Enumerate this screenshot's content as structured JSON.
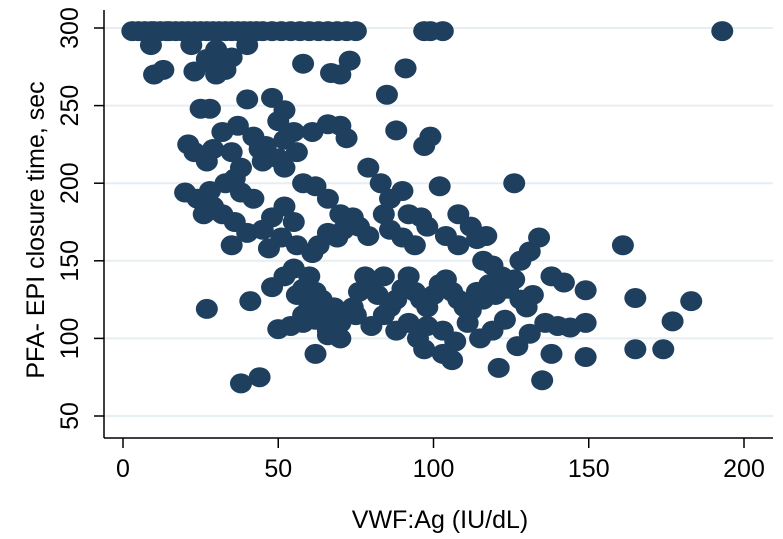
{
  "chart_data": {
    "type": "scatter",
    "title": "",
    "xlabel": "VWF:Ag (IU/dL)",
    "ylabel": "PFA- EPI closure time, sec",
    "xlim": [
      0,
      205
    ],
    "ylim": [
      42,
      307
    ],
    "xticks": [
      0,
      50,
      100,
      150,
      200
    ],
    "yticks": [
      50,
      100,
      150,
      200,
      250,
      300
    ],
    "grid": "horizontal",
    "legend": "none",
    "colors": {
      "marker": "#1f3f5f",
      "grid": "#e6eef2",
      "axis": "#000000"
    },
    "points": [
      [
        3,
        298
      ],
      [
        5,
        298
      ],
      [
        7,
        298
      ],
      [
        9,
        298
      ],
      [
        10,
        298
      ],
      [
        12,
        298
      ],
      [
        14,
        298
      ],
      [
        15,
        298
      ],
      [
        17,
        298
      ],
      [
        19,
        298
      ],
      [
        21,
        298
      ],
      [
        23,
        298
      ],
      [
        25,
        298
      ],
      [
        27,
        298
      ],
      [
        29,
        298
      ],
      [
        31,
        298
      ],
      [
        33,
        298
      ],
      [
        35,
        298
      ],
      [
        37,
        298
      ],
      [
        39,
        298
      ],
      [
        41,
        298
      ],
      [
        43,
        298
      ],
      [
        45,
        298
      ],
      [
        48,
        298
      ],
      [
        51,
        298
      ],
      [
        54,
        298
      ],
      [
        57,
        298
      ],
      [
        60,
        298
      ],
      [
        63,
        298
      ],
      [
        66,
        298
      ],
      [
        69,
        298
      ],
      [
        72,
        298
      ],
      [
        75,
        298
      ],
      [
        97,
        298
      ],
      [
        99,
        298
      ],
      [
        103,
        298
      ],
      [
        193,
        298
      ],
      [
        9,
        289
      ],
      [
        22,
        289
      ],
      [
        30,
        286
      ],
      [
        40,
        289
      ],
      [
        10,
        270
      ],
      [
        13,
        273
      ],
      [
        23,
        272
      ],
      [
        27,
        280
      ],
      [
        29,
        276
      ],
      [
        33,
        273
      ],
      [
        35,
        281
      ],
      [
        30,
        270
      ],
      [
        58,
        277
      ],
      [
        67,
        271
      ],
      [
        70,
        270
      ],
      [
        73,
        279
      ],
      [
        91,
        274
      ],
      [
        85,
        257
      ],
      [
        25,
        248
      ],
      [
        28,
        248
      ],
      [
        40,
        254
      ],
      [
        48,
        255
      ],
      [
        52,
        247
      ],
      [
        50,
        240
      ],
      [
        37,
        237
      ],
      [
        32,
        233
      ],
      [
        42,
        230
      ],
      [
        46,
        224
      ],
      [
        52,
        228
      ],
      [
        55,
        233
      ],
      [
        61,
        233
      ],
      [
        66,
        238
      ],
      [
        70,
        237
      ],
      [
        72,
        229
      ],
      [
        88,
        234
      ],
      [
        97,
        224
      ],
      [
        99,
        230
      ],
      [
        21,
        225
      ],
      [
        23,
        220
      ],
      [
        27,
        214
      ],
      [
        29,
        222
      ],
      [
        35,
        220
      ],
      [
        38,
        210
      ],
      [
        44,
        222
      ],
      [
        45,
        214
      ],
      [
        50,
        216
      ],
      [
        52,
        210
      ],
      [
        56,
        220
      ],
      [
        36,
        203
      ],
      [
        28,
        195
      ],
      [
        33,
        200
      ],
      [
        38,
        194
      ],
      [
        42,
        190
      ],
      [
        20,
        194
      ],
      [
        24,
        190
      ],
      [
        26,
        180
      ],
      [
        29,
        185
      ],
      [
        32,
        180
      ],
      [
        36,
        175
      ],
      [
        40,
        168
      ],
      [
        45,
        170
      ],
      [
        48,
        178
      ],
      [
        52,
        185
      ],
      [
        55,
        175
      ],
      [
        58,
        200
      ],
      [
        62,
        198
      ],
      [
        66,
        190
      ],
      [
        70,
        180
      ],
      [
        74,
        178
      ],
      [
        79,
        210
      ],
      [
        83,
        200
      ],
      [
        86,
        190
      ],
      [
        90,
        195
      ],
      [
        92,
        180
      ],
      [
        96,
        178
      ],
      [
        102,
        198
      ],
      [
        108,
        180
      ],
      [
        112,
        172
      ],
      [
        117,
        166
      ],
      [
        126,
        200
      ],
      [
        35,
        160
      ],
      [
        47,
        158
      ],
      [
        51,
        165
      ],
      [
        56,
        160
      ],
      [
        61,
        155
      ],
      [
        63,
        160
      ],
      [
        66,
        168
      ],
      [
        69,
        165
      ],
      [
        71,
        170
      ],
      [
        76,
        172
      ],
      [
        79,
        166
      ],
      [
        84,
        180
      ],
      [
        86,
        170
      ],
      [
        90,
        165
      ],
      [
        94,
        160
      ],
      [
        98,
        172
      ],
      [
        104,
        166
      ],
      [
        108,
        160
      ],
      [
        114,
        164
      ],
      [
        116,
        150
      ],
      [
        119,
        147
      ],
      [
        128,
        150
      ],
      [
        131,
        156
      ],
      [
        134,
        165
      ],
      [
        161,
        160
      ],
      [
        52,
        140
      ],
      [
        55,
        145
      ],
      [
        58,
        132
      ],
      [
        60,
        140
      ],
      [
        62,
        130
      ],
      [
        64,
        125
      ],
      [
        66,
        117
      ],
      [
        68,
        120
      ],
      [
        70,
        110
      ],
      [
        72,
        115
      ],
      [
        74,
        120
      ],
      [
        76,
        130
      ],
      [
        78,
        140
      ],
      [
        80,
        135
      ],
      [
        82,
        128
      ],
      [
        84,
        140
      ],
      [
        86,
        120
      ],
      [
        88,
        125
      ],
      [
        90,
        132
      ],
      [
        92,
        140
      ],
      [
        94,
        130
      ],
      [
        96,
        125
      ],
      [
        98,
        120
      ],
      [
        100,
        128
      ],
      [
        102,
        135
      ],
      [
        104,
        138
      ],
      [
        106,
        130
      ],
      [
        108,
        125
      ],
      [
        110,
        120
      ],
      [
        112,
        118
      ],
      [
        114,
        130
      ],
      [
        116,
        125
      ],
      [
        118,
        135
      ],
      [
        120,
        128
      ],
      [
        122,
        140
      ],
      [
        124,
        132
      ],
      [
        126,
        138
      ],
      [
        128,
        125
      ],
      [
        130,
        120
      ],
      [
        132,
        128
      ],
      [
        138,
        140
      ],
      [
        142,
        136
      ],
      [
        149,
        131
      ],
      [
        165,
        126
      ],
      [
        183,
        124
      ],
      [
        41,
        124
      ],
      [
        27,
        119
      ],
      [
        50,
        106
      ],
      [
        54,
        108
      ],
      [
        58,
        110
      ],
      [
        62,
        112
      ],
      [
        66,
        105
      ],
      [
        70,
        100
      ],
      [
        75,
        115
      ],
      [
        80,
        108
      ],
      [
        84,
        115
      ],
      [
        88,
        105
      ],
      [
        92,
        110
      ],
      [
        95,
        100
      ],
      [
        98,
        108
      ],
      [
        103,
        105
      ],
      [
        107,
        98
      ],
      [
        111,
        110
      ],
      [
        115,
        100
      ],
      [
        119,
        105
      ],
      [
        123,
        112
      ],
      [
        127,
        95
      ],
      [
        131,
        103
      ],
      [
        136,
        110
      ],
      [
        140,
        108
      ],
      [
        144,
        107
      ],
      [
        149,
        110
      ],
      [
        177,
        111
      ],
      [
        97,
        93
      ],
      [
        103,
        90
      ],
      [
        106,
        86
      ],
      [
        121,
        81
      ],
      [
        138,
        90
      ],
      [
        149,
        88
      ],
      [
        165,
        93
      ],
      [
        174,
        93
      ],
      [
        135,
        73
      ],
      [
        38,
        71
      ],
      [
        44,
        75
      ],
      [
        66,
        102
      ],
      [
        58,
        115
      ],
      [
        62,
        90
      ],
      [
        48,
        133
      ],
      [
        56,
        128
      ],
      [
        60,
        120
      ]
    ]
  }
}
